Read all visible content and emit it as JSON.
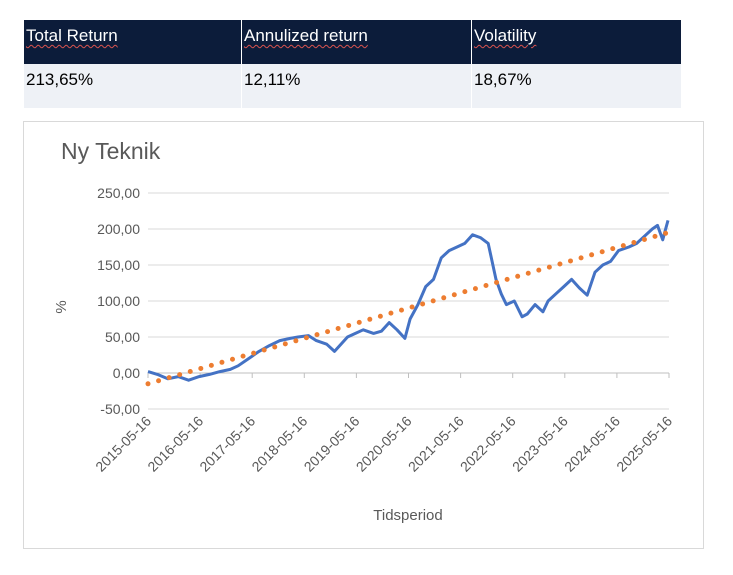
{
  "summary": {
    "headers": [
      "Total Return",
      "Annulized return",
      "Volatility"
    ],
    "values": [
      "213,65%",
      "12,11%",
      "18,67%"
    ]
  },
  "colors": {
    "header_bg": "#0c1c3a",
    "series_line": "#4472c4",
    "trend_line": "#ed7d31",
    "grid": "#d9d9d9"
  },
  "chart_data": {
    "type": "line",
    "title": "Ny Teknik",
    "xlabel": "Tidsperiod",
    "ylabel": "%",
    "ylim": [
      -50,
      250
    ],
    "y_ticks": [
      "-50,00",
      "0,00",
      "50,00",
      "100,00",
      "150,00",
      "200,00",
      "250,00"
    ],
    "x_ticks": [
      "2015-05-16",
      "2016-05-16",
      "2017-05-16",
      "2018-05-16",
      "2019-05-16",
      "2020-05-16",
      "2021-05-16",
      "2022-05-16",
      "2023-05-16",
      "2024-05-16",
      "2025-05-16"
    ],
    "grid": true,
    "legend": "none",
    "series": [
      {
        "style": "solid",
        "x": [
          2015.37,
          2015.55,
          2015.75,
          2015.95,
          2016.15,
          2016.35,
          2016.55,
          2016.75,
          2016.95,
          2017.1,
          2017.3,
          2017.5,
          2017.7,
          2017.9,
          2018.1,
          2018.25,
          2018.45,
          2018.6,
          2018.8,
          2018.95,
          2019.1,
          2019.2,
          2019.35,
          2019.5,
          2019.7,
          2019.85,
          2020.0,
          2020.15,
          2020.3,
          2020.4,
          2020.55,
          2020.7,
          2020.85,
          2021.0,
          2021.15,
          2021.3,
          2021.45,
          2021.6,
          2021.75,
          2021.9,
          2022.05,
          2022.15,
          2022.25,
          2022.4,
          2022.55,
          2022.65,
          2022.8,
          2022.95,
          2023.05,
          2023.2,
          2023.35,
          2023.5,
          2023.65,
          2023.8,
          2023.95,
          2024.1,
          2024.25,
          2024.4,
          2024.6,
          2024.75,
          2024.9,
          2025.05,
          2025.15,
          2025.25,
          2025.35
        ],
        "values": [
          2,
          -2,
          -8,
          -5,
          -10,
          -5,
          -2,
          2,
          5,
          10,
          20,
          30,
          38,
          45,
          48,
          50,
          52,
          45,
          40,
          30,
          42,
          50,
          55,
          60,
          55,
          58,
          70,
          60,
          48,
          75,
          95,
          120,
          130,
          160,
          170,
          175,
          180,
          192,
          188,
          180,
          130,
          110,
          95,
          100,
          78,
          82,
          95,
          85,
          100,
          110,
          120,
          130,
          118,
          108,
          140,
          150,
          155,
          170,
          175,
          180,
          190,
          200,
          205,
          185,
          212
        ]
      },
      {
        "style": "dotted",
        "x": [
          2015.37,
          2025.35
        ],
        "values": [
          -15,
          195
        ]
      }
    ]
  }
}
